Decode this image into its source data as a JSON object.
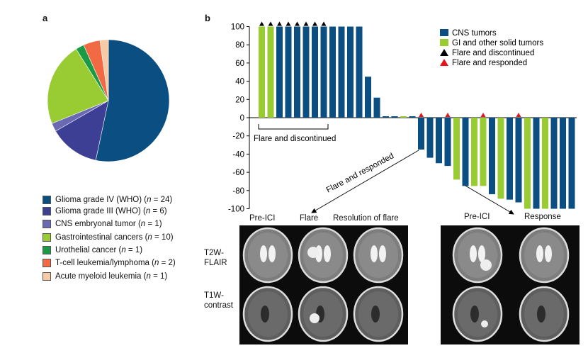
{
  "panel_a": {
    "letter": "a",
    "chart_data": {
      "type": "pie",
      "categories": [
        "Glioma grade IV (WHO)",
        "Glioma grade III (WHO)",
        "CNS embryonal tumor",
        "Gastrointestinal cancers",
        "Urothelial cancer",
        "T-cell leukemia/lymphoma",
        "Acute myeloid leukemia"
      ],
      "values": [
        24,
        6,
        1,
        10,
        1,
        2,
        1
      ],
      "colors": [
        "#0b4f82",
        "#3d3f94",
        "#6a6ab4",
        "#99cc33",
        "#1b9a45",
        "#f26a43",
        "#f8c9a5"
      ],
      "legend": [
        {
          "name": "Glioma grade IV (WHO)",
          "n": "24"
        },
        {
          "name": "Glioma grade III (WHO)",
          "n": "6"
        },
        {
          "name": "CNS embryonal tumor",
          "n": "1"
        },
        {
          "name": "Gastrointestinal cancers",
          "n": "10"
        },
        {
          "name": "Urothelial cancer",
          "n": "1"
        },
        {
          "name": "T-cell leukemia/lymphoma",
          "n": "2"
        },
        {
          "name": "Acute myeloid leukemia",
          "n": "1"
        }
      ],
      "legend_placement": "bottom"
    }
  },
  "panel_b": {
    "letter": "b",
    "chart_data": {
      "type": "bar",
      "ylim": [
        -100,
        100
      ],
      "yticks": [
        100,
        80,
        60,
        40,
        20,
        0,
        -20,
        -40,
        -60,
        -80,
        -100
      ],
      "values": [
        100,
        100,
        100,
        100,
        100,
        100,
        100,
        100,
        100,
        100,
        100,
        100,
        45,
        22,
        1,
        1,
        1,
        1,
        -35,
        -44,
        -50,
        -53,
        -68,
        -75,
        -75,
        -75,
        -84,
        -89,
        -90,
        -93,
        -100,
        -100,
        -100,
        -100,
        -100,
        -100
      ],
      "groups": [
        "GI",
        "GI",
        "CNS",
        "CNS",
        "CNS",
        "CNS",
        "CNS",
        "CNS",
        "CNS",
        "CNS",
        "CNS",
        "CNS",
        "CNS",
        "CNS",
        "CNS",
        "CNS",
        "GI",
        "CNS",
        "CNS",
        "CNS",
        "CNS",
        "CNS",
        "GI",
        "CNS",
        "GI",
        "GI",
        "CNS",
        "GI",
        "CNS",
        "CNS",
        "GI",
        "CNS",
        "GI",
        "CNS",
        "CNS",
        "CNS"
      ],
      "flare_discontinued_bars": [
        1,
        2,
        3,
        4,
        5,
        6,
        7,
        8
      ],
      "flare_responded_bars": [
        19,
        22,
        26,
        30
      ],
      "series_colors": {
        "CNS": "#0b4f82",
        "GI": "#99cc33",
        "flare_discontinued": "#000000",
        "flare_responded": "#e8141b"
      },
      "legend": [
        "CNS tumors",
        "GI and other solid tumors",
        "Flare and discontinued",
        "Flare and responded"
      ],
      "legend_placement": "top-right",
      "annotations": {
        "bracket": "Flare and discontinued",
        "arrow": "Flare and responded"
      }
    },
    "images_left": {
      "columns": [
        "Pre-ICI",
        "Flare",
        "Resolution of flare"
      ],
      "rows": [
        "T2W-\nFLAIR",
        "T1W-\ncontrast"
      ]
    },
    "images_right": {
      "columns": [
        "Pre-ICI",
        "Response"
      ]
    }
  }
}
